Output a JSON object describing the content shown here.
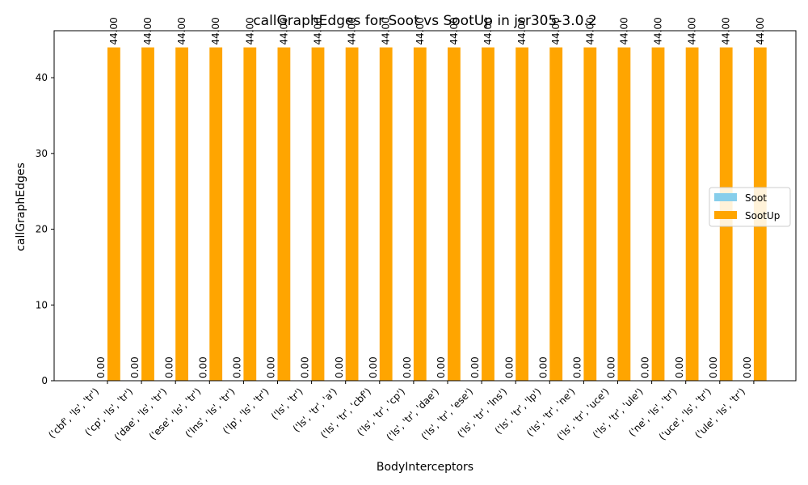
{
  "chart_data": {
    "type": "bar",
    "title": "callGraphEdges for Soot vs SootUp in jsr305-3.0.2",
    "xlabel": "BodyInterceptors",
    "ylabel": "callGraphEdges",
    "ylim": [
      0,
      46.2
    ],
    "yticks": [
      0,
      10,
      20,
      30,
      40
    ],
    "grid": false,
    "legend_position": "center-right",
    "categories": [
      "('cbf', 'ls', 'tr')",
      "('cp', 'ls', 'tr')",
      "('dae', 'ls', 'tr')",
      "('ese', 'ls', 'tr')",
      "('lns', 'ls', 'tr')",
      "('lp', 'ls', 'tr')",
      "('ls', 'tr')",
      "('ls', 'tr', 'a')",
      "('ls', 'tr', 'cbf')",
      "('ls', 'tr', 'cp')",
      "('ls', 'tr', 'dae')",
      "('ls', 'tr', 'ese')",
      "('ls', 'tr', 'lns')",
      "('ls', 'tr', 'lp')",
      "('ls', 'tr', 'ne')",
      "('ls', 'tr', 'uce')",
      "('ls', 'tr', 'ule')",
      "('ne', 'ls', 'tr')",
      "('uce', 'ls', 'tr')",
      "('ule', 'ls', 'tr')"
    ],
    "series": [
      {
        "name": "Soot",
        "color": "#87ceeb",
        "values": [
          0,
          0,
          0,
          0,
          0,
          0,
          0,
          0,
          0,
          0,
          0,
          0,
          0,
          0,
          0,
          0,
          0,
          0,
          0,
          0
        ],
        "value_labels": [
          "0.00",
          "0.00",
          "0.00",
          "0.00",
          "0.00",
          "0.00",
          "0.00",
          "0.00",
          "0.00",
          "0.00",
          "0.00",
          "0.00",
          "0.00",
          "0.00",
          "0.00",
          "0.00",
          "0.00",
          "0.00",
          "0.00",
          "0.00"
        ]
      },
      {
        "name": "SootUp",
        "color": "#ffa500",
        "values": [
          44,
          44,
          44,
          44,
          44,
          44,
          44,
          44,
          44,
          44,
          44,
          44,
          44,
          44,
          44,
          44,
          44,
          44,
          44,
          44
        ],
        "value_labels": [
          "44.00",
          "44.00",
          "44.00",
          "44.00",
          "44.00",
          "44.00",
          "44.00",
          "44.00",
          "44.00",
          "44.00",
          "44.00",
          "44.00",
          "44.00",
          "44.00",
          "44.00",
          "44.00",
          "44.00",
          "44.00",
          "44.00",
          "44.00"
        ]
      }
    ]
  }
}
